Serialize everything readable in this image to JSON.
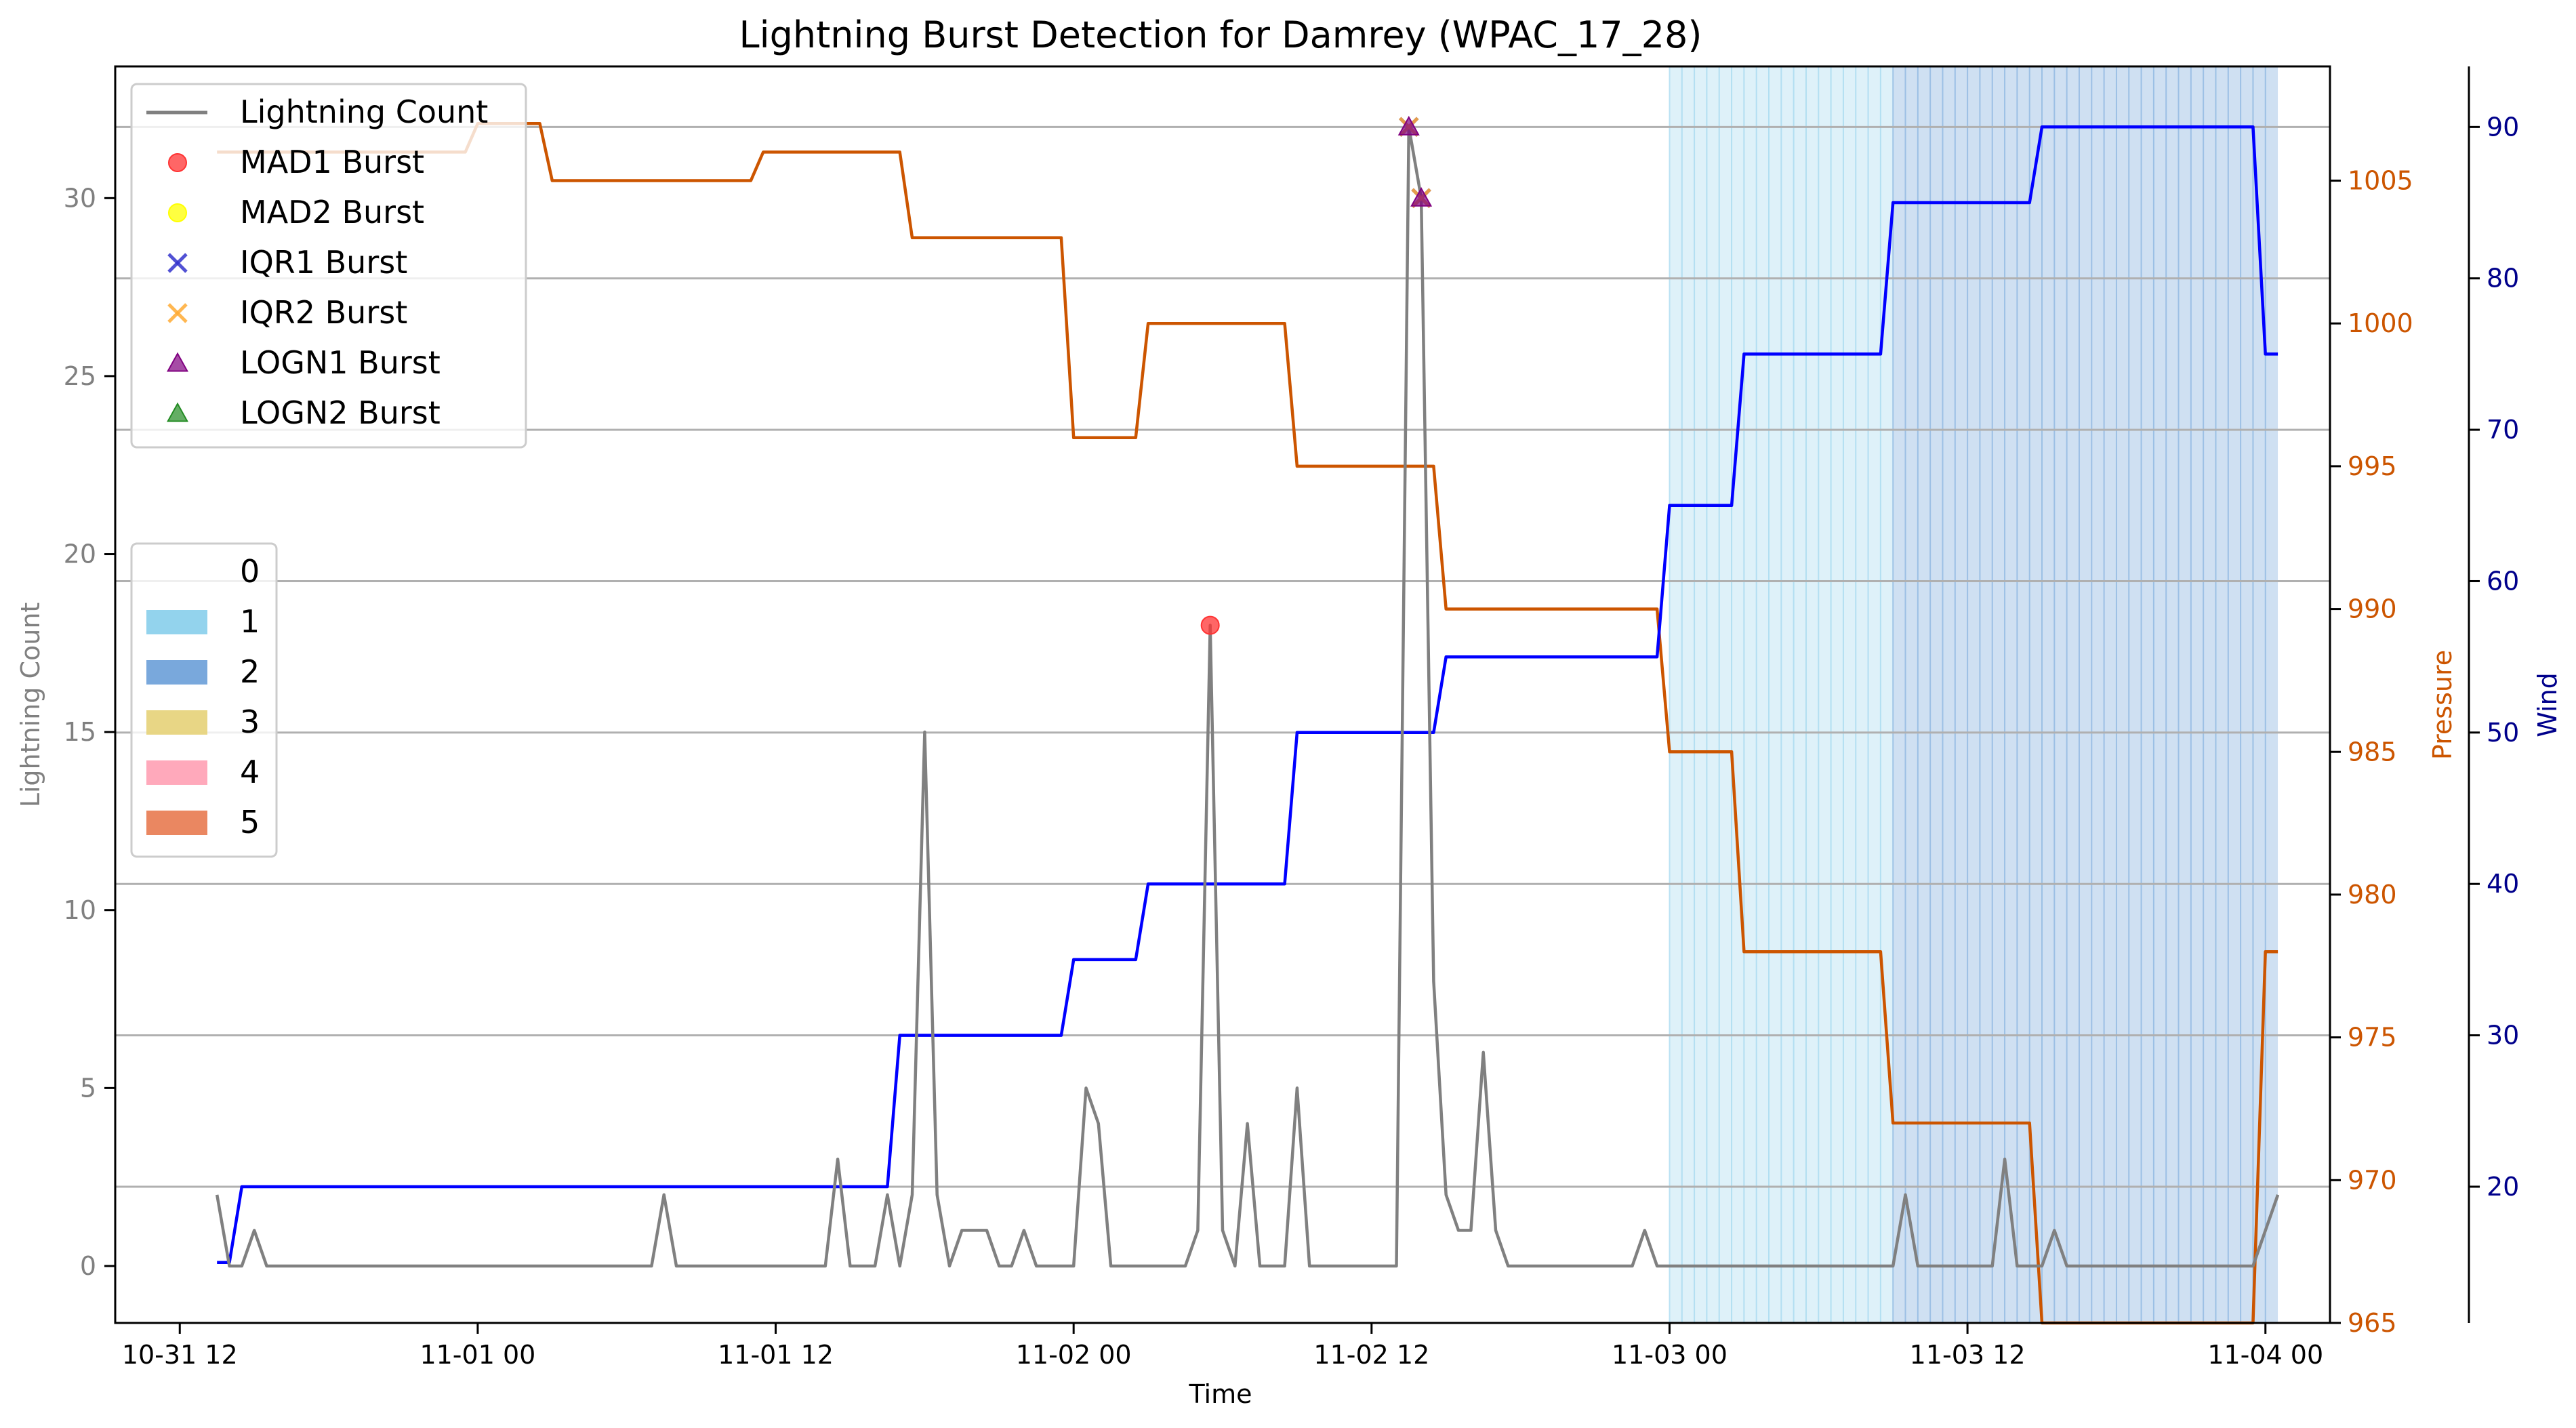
{
  "chart_data": {
    "type": "line",
    "title": "Lightning Burst Detection for Damrey (WPAC_17_28)",
    "xlabel": "Time",
    "ylabel_left": "Lightning Count",
    "ylabel_pressure": "Pressure",
    "ylabel_wind": "Wind",
    "x_unit": "hours",
    "x_ticks": [
      {
        "h": 0,
        "label": "10-31 12"
      },
      {
        "h": 12,
        "label": "11-01 00"
      },
      {
        "h": 24,
        "label": "11-01 12"
      },
      {
        "h": 36,
        "label": "11-02 00"
      },
      {
        "h": 48,
        "label": "11-02 12"
      },
      {
        "h": 60,
        "label": "11-03 00"
      },
      {
        "h": 72,
        "label": "11-03 12"
      },
      {
        "h": 84,
        "label": "11-04 00"
      }
    ],
    "xlim": [
      -2.6,
      86.6
    ],
    "ylim_left": [
      -1.6,
      33.7
    ],
    "ylim_pressure": [
      965,
      1009
    ],
    "ylim_wind": [
      11,
      94
    ],
    "yticks_left": [
      0,
      5,
      10,
      15,
      20,
      25,
      30
    ],
    "yticks_pressure": [
      965,
      970,
      975,
      980,
      985,
      990,
      995,
      1000,
      1005
    ],
    "yticks_wind": [
      20,
      30,
      40,
      50,
      60,
      70,
      80,
      90
    ],
    "wind_gridlines": [
      20,
      30,
      40,
      50,
      60,
      70,
      80,
      90
    ],
    "colors": {
      "lightning": "#808080",
      "pressure": "#cc5500",
      "wind": "#0000ff",
      "wind_axis": "#00008b",
      "cat1": "#87ceeb",
      "cat2": "#6a9fd8",
      "cat3": "#e6d178",
      "cat4": "#ffa0b4",
      "cat5": "#e87a50",
      "mad1": "#ff3333",
      "mad2": "#ffff00",
      "iqr1": "#3333cc",
      "iqr2": "#ffaa33",
      "logn1": "#800080",
      "logn2": "#228b22"
    },
    "category_bands": [
      {
        "category": 1,
        "start": 60,
        "end": 69
      },
      {
        "category": 2,
        "start": 69,
        "end": 84.5
      }
    ],
    "legend_lines": [
      {
        "label": "Lightning Count",
        "key": "line"
      },
      {
        "label": "MAD1 Burst",
        "key": "mad1"
      },
      {
        "label": "MAD2 Burst",
        "key": "mad2"
      },
      {
        "label": "IQR1 Burst",
        "key": "iqr1"
      },
      {
        "label": "IQR2 Burst",
        "key": "iqr2"
      },
      {
        "label": "LOGN1 Burst",
        "key": "logn1"
      },
      {
        "label": "LOGN2 Burst",
        "key": "logn2"
      }
    ],
    "legend_categories": [
      {
        "label": "0",
        "key": "cat0"
      },
      {
        "label": "1",
        "key": "cat1"
      },
      {
        "label": "2",
        "key": "cat2"
      },
      {
        "label": "3",
        "key": "cat3"
      },
      {
        "label": "4",
        "key": "cat4"
      },
      {
        "label": "5",
        "key": "cat5"
      }
    ],
    "lightning": [
      [
        1.5,
        2
      ],
      [
        2,
        0
      ],
      [
        2.5,
        0
      ],
      [
        3,
        1
      ],
      [
        3.5,
        0
      ],
      [
        4,
        0
      ],
      [
        18,
        0
      ],
      [
        19,
        0
      ],
      [
        19.5,
        2
      ],
      [
        20,
        0
      ],
      [
        25,
        0
      ],
      [
        26,
        0
      ],
      [
        26.5,
        3
      ],
      [
        27,
        0
      ],
      [
        28,
        0
      ],
      [
        28.5,
        2
      ],
      [
        29,
        0
      ],
      [
        29.5,
        2
      ],
      [
        30,
        15
      ],
      [
        30.5,
        2
      ],
      [
        31,
        0
      ],
      [
        31.5,
        1
      ],
      [
        32,
        1
      ],
      [
        32.5,
        1
      ],
      [
        33,
        0
      ],
      [
        33.5,
        0
      ],
      [
        34,
        1
      ],
      [
        34.5,
        0
      ],
      [
        35,
        0
      ],
      [
        36,
        0
      ],
      [
        36.5,
        5
      ],
      [
        37,
        4
      ],
      [
        37.5,
        0
      ],
      [
        40,
        0
      ],
      [
        40.5,
        0
      ],
      [
        41,
        1
      ],
      [
        41.5,
        18
      ],
      [
        42,
        1
      ],
      [
        42.5,
        0
      ],
      [
        43,
        4
      ],
      [
        43.5,
        0
      ],
      [
        44,
        0
      ],
      [
        44.5,
        0
      ],
      [
        45,
        5
      ],
      [
        45.5,
        0
      ],
      [
        49,
        0
      ],
      [
        49.5,
        32
      ],
      [
        50,
        30
      ],
      [
        50.5,
        8
      ],
      [
        51,
        2
      ],
      [
        51.5,
        1
      ],
      [
        52,
        1
      ],
      [
        52.5,
        6
      ],
      [
        53,
        1
      ],
      [
        53.5,
        0
      ],
      [
        58.5,
        0
      ],
      [
        59,
        1
      ],
      [
        59.5,
        0
      ],
      [
        69,
        0
      ],
      [
        69.5,
        2
      ],
      [
        70,
        0
      ],
      [
        73,
        0
      ],
      [
        73.5,
        3
      ],
      [
        74,
        0
      ],
      [
        75,
        0
      ],
      [
        75.5,
        1
      ],
      [
        76,
        0
      ],
      [
        83.5,
        0
      ],
      [
        84.5,
        2
      ]
    ],
    "pressure": [
      [
        1.5,
        1006
      ],
      [
        11.5,
        1006
      ],
      [
        12,
        1007
      ],
      [
        14.5,
        1007
      ],
      [
        15,
        1005
      ],
      [
        23,
        1005
      ],
      [
        23.5,
        1006
      ],
      [
        29,
        1006
      ],
      [
        29.5,
        1003
      ],
      [
        35.5,
        1003
      ],
      [
        36,
        996
      ],
      [
        38.5,
        996
      ],
      [
        39,
        1000
      ],
      [
        44.5,
        1000
      ],
      [
        45,
        995
      ],
      [
        50.5,
        995
      ],
      [
        51,
        990
      ],
      [
        59.5,
        990
      ],
      [
        60,
        985
      ],
      [
        62.5,
        985
      ],
      [
        63,
        978
      ],
      [
        68.5,
        978
      ],
      [
        69,
        972
      ],
      [
        74.5,
        972
      ],
      [
        75,
        965
      ],
      [
        83.5,
        965
      ],
      [
        84,
        978
      ],
      [
        84.5,
        978
      ]
    ],
    "wind": [
      [
        1.5,
        15
      ],
      [
        2,
        15
      ],
      [
        2.5,
        20
      ],
      [
        28.5,
        20
      ],
      [
        29,
        30
      ],
      [
        35.5,
        30
      ],
      [
        36,
        35
      ],
      [
        38.5,
        35
      ],
      [
        39,
        40
      ],
      [
        44.5,
        40
      ],
      [
        45,
        50
      ],
      [
        50.5,
        50
      ],
      [
        51,
        55
      ],
      [
        59.5,
        55
      ],
      [
        60,
        65
      ],
      [
        62.5,
        65
      ],
      [
        63,
        75
      ],
      [
        68.5,
        75
      ],
      [
        69,
        85
      ],
      [
        74.5,
        85
      ],
      [
        75,
        90
      ],
      [
        83.5,
        90
      ],
      [
        84,
        75
      ],
      [
        84.5,
        75
      ]
    ],
    "bursts": [
      {
        "method": "MAD1",
        "x": 41.5,
        "y": 18
      },
      {
        "method": "IQR1",
        "x": 49.5,
        "y": 32
      },
      {
        "method": "IQR2",
        "x": 49.5,
        "y": 32
      },
      {
        "method": "LOGN1",
        "x": 49.5,
        "y": 32
      },
      {
        "method": "IQR1",
        "x": 50,
        "y": 30
      },
      {
        "method": "IQR2",
        "x": 50,
        "y": 30
      },
      {
        "method": "LOGN1",
        "x": 50,
        "y": 30
      }
    ]
  }
}
